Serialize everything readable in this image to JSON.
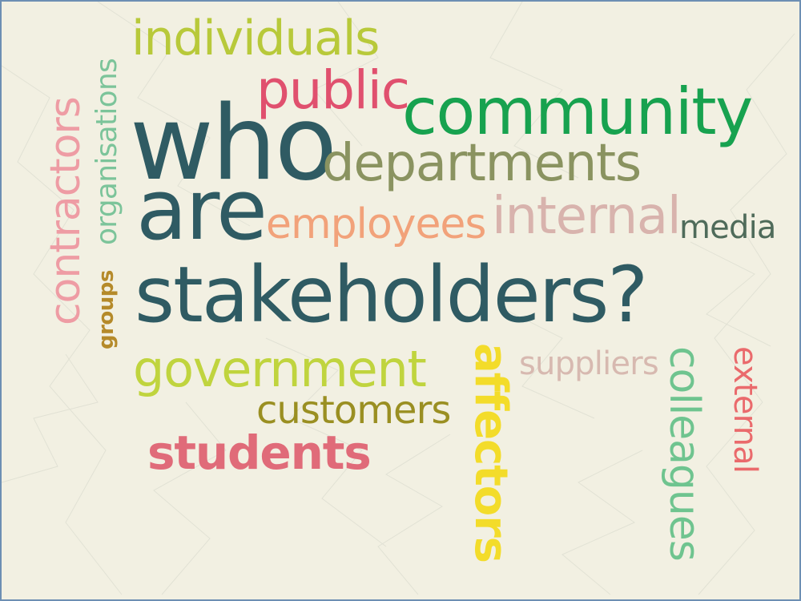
{
  "words": {
    "individuals": {
      "text": "individuals",
      "color": "#b8c93a"
    },
    "public": {
      "text": "public",
      "color": "#e0506e"
    },
    "community": {
      "text": "community",
      "color": "#17a24f"
    },
    "who": {
      "text": "who",
      "color": "#2f5b63"
    },
    "departments": {
      "text": "departments",
      "color": "#8a9360"
    },
    "are": {
      "text": "are",
      "color": "#2f5b63"
    },
    "employees": {
      "text": "employees",
      "color": "#f2a27a"
    },
    "internal": {
      "text": "internal",
      "color": "#d8b3ad"
    },
    "media": {
      "text": "media",
      "color": "#4f6b5a"
    },
    "stakeholders": {
      "text": "stakeholders?",
      "color": "#2f5b63"
    },
    "government": {
      "text": "government",
      "color": "#c0d43e"
    },
    "suppliers": {
      "text": "suppliers",
      "color": "#d7b9b0"
    },
    "customers": {
      "text": "customers",
      "color": "#9a8f22"
    },
    "students": {
      "text": "students",
      "color": "#e06b79"
    },
    "contractors": {
      "text": "contractors",
      "color": "#ee9ca4"
    },
    "organisations": {
      "text": "organisations",
      "color": "#7cc49a"
    },
    "groups": {
      "text": "groups",
      "color": "#b58a2a"
    },
    "affectors": {
      "text": "affectors",
      "color": "#f3dc2a"
    },
    "colleagues": {
      "text": "colleagues",
      "color": "#6fc48f"
    },
    "external": {
      "text": "external",
      "color": "#ea6a6c"
    }
  },
  "theme": {
    "background": "#f2f0e2",
    "border": "#6d8fb3"
  }
}
